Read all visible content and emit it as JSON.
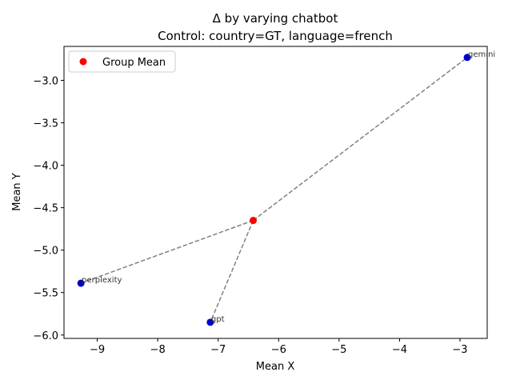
{
  "chart_data": {
    "type": "scatter",
    "title": "Δ by varying chatbot",
    "subtitle": "Control: country=GT, language=french",
    "xlabel": "Mean X",
    "ylabel": "Mean Y",
    "xlim": [
      -9.55,
      -2.55
    ],
    "ylim": [
      -6.04,
      -2.6
    ],
    "xticks": [
      -9,
      -8,
      -7,
      -6,
      -5,
      -4,
      -3
    ],
    "yticks": [
      -6.0,
      -5.5,
      -5.0,
      -4.5,
      -4.0,
      -3.5,
      -3.0
    ],
    "xtick_labels": [
      "−9",
      "−8",
      "−7",
      "−6",
      "−5",
      "−4",
      "−3"
    ],
    "ytick_labels": [
      "−6.0",
      "−5.5",
      "−5.0",
      "−4.5",
      "−4.0",
      "−3.5",
      "−3.0"
    ],
    "grid": false,
    "legend_position": "top-left",
    "group_mean": {
      "name": "Group Mean",
      "x": -6.42,
      "y": -4.65,
      "color": "#ff0000"
    },
    "points": [
      {
        "label": "gemini",
        "x": -2.88,
        "y": -2.73
      },
      {
        "label": "perplexity",
        "x": -9.27,
        "y": -5.39
      },
      {
        "label": "gpt",
        "x": -7.13,
        "y": -5.85
      }
    ],
    "point_color": "#0000cc",
    "line_color": "#808080"
  }
}
